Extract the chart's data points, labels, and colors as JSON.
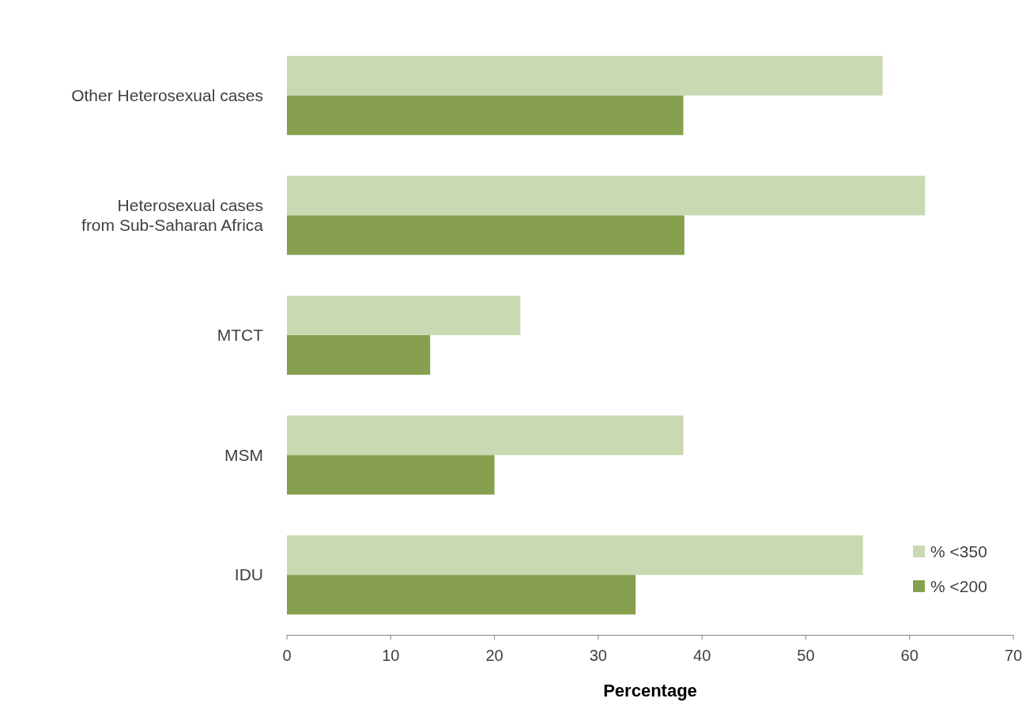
{
  "chart_data": {
    "type": "bar",
    "orientation": "horizontal",
    "categories": [
      "Other Heterosexual cases",
      "Heterosexual cases\nfrom Sub-Saharan Africa",
      "MTCT",
      "MSM",
      "IDU"
    ],
    "series": [
      {
        "name": "% <350",
        "color": "#c9d9b1",
        "values": [
          57.4,
          61.5,
          22.5,
          38.2,
          55.5
        ]
      },
      {
        "name": "% <200",
        "color": "#87a04f",
        "values": [
          38.2,
          38.3,
          13.8,
          20.0,
          33.6
        ]
      }
    ],
    "xlabel": "Percentage",
    "xlim": [
      0,
      70
    ],
    "xticks": [
      0,
      10,
      20,
      30,
      40,
      50,
      60,
      70
    ],
    "grid": false,
    "legend": "bottom right"
  }
}
